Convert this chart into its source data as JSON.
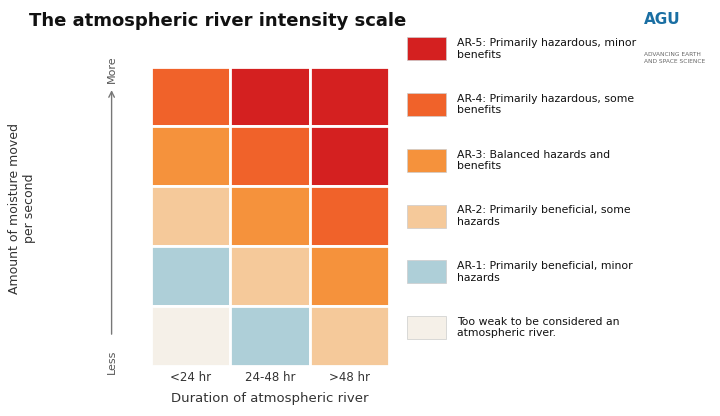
{
  "title": "The atmospheric river intensity scale",
  "background_color": "#ffffff",
  "xlabel": "Duration of atmospheric river",
  "ylabel": "Amount of moisture moved\nper second",
  "x_labels": [
    "<24 hr",
    "24-48 hr",
    ">48 hr"
  ],
  "colors": {
    "AR-5": "#d42020",
    "AR-4": "#f0622a",
    "AR-3": "#f5923c",
    "AR-2": "#f5c99a",
    "AR-1": "#aecfd8",
    "too_weak": "#f5f0e8"
  },
  "grid": [
    [
      "AR-4",
      "AR-5",
      "AR-5"
    ],
    [
      "AR-3",
      "AR-4",
      "AR-5"
    ],
    [
      "AR-2",
      "AR-3",
      "AR-4"
    ],
    [
      "AR-1",
      "AR-2",
      "AR-3"
    ],
    [
      "too_weak",
      "AR-1",
      "AR-2"
    ]
  ],
  "legend_items": [
    {
      "key": "AR-5",
      "label": "AR-5: Primarily hazardous, minor\nbenefits"
    },
    {
      "key": "AR-4",
      "label": "AR-4: Primarily hazardous, some\nbenefits"
    },
    {
      "key": "AR-3",
      "label": "AR-3: Balanced hazards and\nbenefits"
    },
    {
      "key": "AR-2",
      "label": "AR-2: Primarily beneficial, some\nhazards"
    },
    {
      "key": "AR-1",
      "label": "AR-1: Primarily beneficial, minor\nhazards"
    },
    {
      "key": "too_weak",
      "label": "Too weak to be considered an\natmospheric river."
    }
  ],
  "arrow_label_less": "Less",
  "arrow_label_more": "More",
  "agu_text": "AGU",
  "agu_subtext": "ADVANCING EARTH\nAND SPACE SCIENCE",
  "agu_color": "#1a6fa3"
}
